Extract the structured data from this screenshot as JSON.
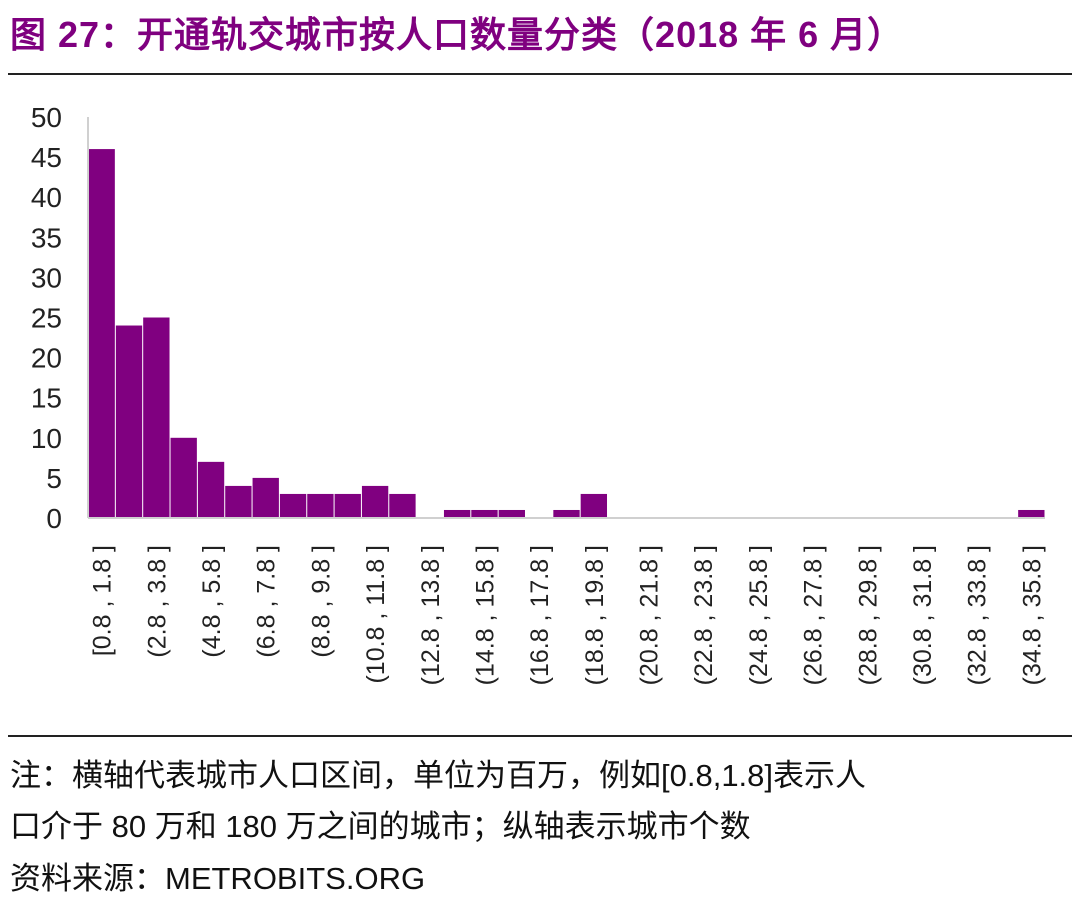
{
  "title": "图 27：开通轨交城市按人口数量分类（2018 年 6 月）",
  "chart_data": {
    "type": "bar",
    "bin_start": 0.8,
    "bin_width": 1.0,
    "values": [
      46,
      24,
      25,
      10,
      7,
      4,
      5,
      3,
      3,
      3,
      4,
      3,
      0,
      1,
      1,
      1,
      0,
      1,
      3,
      0,
      0,
      0,
      0,
      0,
      0,
      0,
      0,
      0,
      0,
      0,
      0,
      0,
      0,
      0,
      1
    ],
    "tick_labels": [
      "[0.8 , 1.8 ]",
      "(2.8 , 3.8 ]",
      "(4.8 , 5.8 ]",
      "(6.8 , 7.8 ]",
      "(8.8 , 9.8 ]",
      "(10.8 , 11.8 ]",
      "(12.8 , 13.8 ]",
      "(14.8 , 15.8 ]",
      "(16.8 , 17.8 ]",
      "(18.8 , 19.8 ]",
      "(20.8 , 21.8 ]",
      "(22.8 , 23.8 ]",
      "(24.8 , 25.8 ]",
      "(26.8 , 27.8 ]",
      "(28.8 , 29.8 ]",
      "(30.8 , 31.8 ]",
      "(32.8 , 33.8 ]",
      "(34.8 , 35.8 ]"
    ],
    "yticks": [
      "0",
      "5",
      "10",
      "15",
      "20",
      "25",
      "30",
      "35",
      "40",
      "45",
      "50"
    ],
    "ylim": [
      0,
      50
    ],
    "bar_color": "#800080",
    "grid": false,
    "legend": "none"
  },
  "notes": {
    "line1": "注：横轴代表城市人口区间，单位为百万，例如[0.8,1.8]表示人",
    "line2": "口介于 80 万和 180 万之间的城市；纵轴表示城市个数",
    "source": "资料来源：METROBITS.ORG"
  }
}
